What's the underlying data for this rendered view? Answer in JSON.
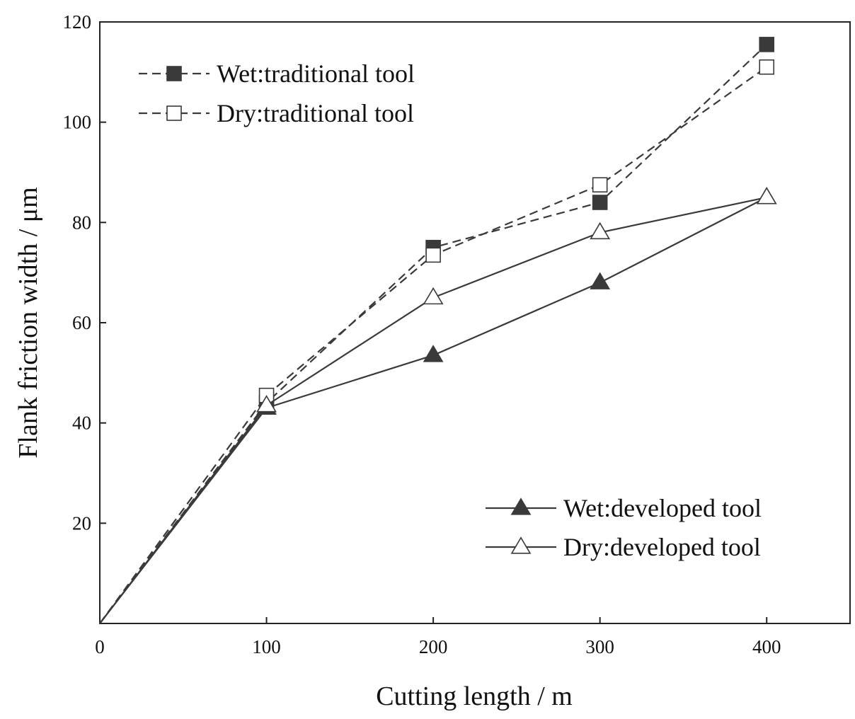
{
  "chart_data": {
    "type": "line",
    "title": "",
    "xlabel": "Cutting length / m",
    "ylabel": "Flank friction width / μm",
    "xlim": [
      0,
      450
    ],
    "ylim": [
      0,
      120
    ],
    "xticks": [
      0,
      100,
      200,
      300,
      400
    ],
    "yticks": [
      20,
      40,
      60,
      80,
      100,
      120
    ],
    "grid": false,
    "legend_placement": [
      "top-left",
      "bottom-right"
    ],
    "series": [
      {
        "name": "Wet:traditional tool",
        "x": [
          0,
          100,
          200,
          300,
          400
        ],
        "y": [
          0,
          44,
          75,
          84,
          115.5
        ],
        "line": "dashed",
        "marker": "square-filled",
        "color": "#3a3a3a",
        "legend": "top-left"
      },
      {
        "name": "Dry:traditional tool",
        "x": [
          0,
          100,
          200,
          300,
          400
        ],
        "y": [
          0,
          45.5,
          73.5,
          87.5,
          111
        ],
        "line": "dashed",
        "marker": "square-open",
        "color": "#3a3a3a",
        "legend": "top-left"
      },
      {
        "name": "Wet:developed tool",
        "x": [
          0,
          100,
          200,
          300,
          400
        ],
        "y": [
          0,
          43,
          53.5,
          68,
          85
        ],
        "line": "solid",
        "marker": "triangle-filled",
        "color": "#3a3a3a",
        "legend": "bottom-right"
      },
      {
        "name": "Dry:developed tool",
        "x": [
          0,
          100,
          200,
          300,
          400
        ],
        "y": [
          0,
          43.5,
          65,
          78,
          85
        ],
        "line": "solid",
        "marker": "triangle-open",
        "color": "#3a3a3a",
        "legend": "bottom-right"
      }
    ]
  }
}
